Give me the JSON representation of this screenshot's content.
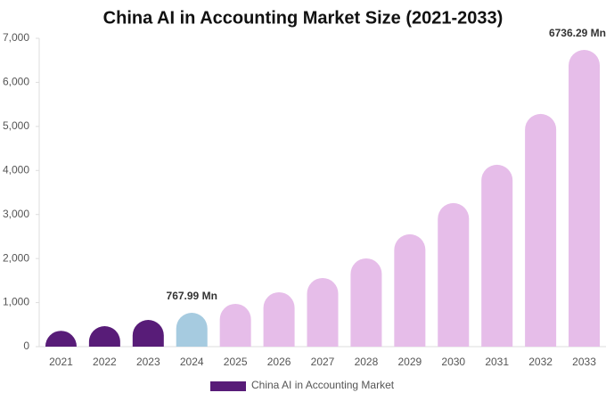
{
  "chart_data": {
    "type": "bar",
    "title": "China AI in Accounting Market Size (2021-2033)",
    "categories": [
      "2021",
      "2022",
      "2023",
      "2024",
      "2025",
      "2026",
      "2027",
      "2028",
      "2029",
      "2030",
      "2031",
      "2032",
      "2033"
    ],
    "series": [
      {
        "name": "China AI in Accounting Market",
        "color": "#581c78",
        "colors": [
          "#581c78",
          "#581c78",
          "#581c78",
          "#a6cbe0",
          "#e6bde9",
          "#e6bde9",
          "#e6bde9",
          "#e6bde9",
          "#e6bde9",
          "#e6bde9",
          "#e6bde9",
          "#e6bde9",
          "#e6bde9"
        ],
        "values": [
          360,
          465,
          607,
          767.99,
          972,
          1235,
          1559,
          2004,
          2551,
          3259,
          4130,
          5283,
          6736.29
        ],
        "value_labels": [
          null,
          null,
          null,
          "767.99 Mn",
          null,
          null,
          null,
          null,
          null,
          null,
          null,
          null,
          "6736.29 Mn"
        ]
      }
    ],
    "ylim": [
      0,
      7000
    ],
    "yticks": [
      0,
      {
        "value": 1000,
        "label": "1,000"
      },
      {
        "value": 2000,
        "label": "2,000"
      },
      {
        "value": 3000,
        "label": "3,000"
      },
      {
        "value": 4000,
        "label": "4,000"
      },
      {
        "value": 5000,
        "label": "5,000"
      },
      {
        "value": 6000,
        "label": "6,000"
      },
      {
        "value": 7000,
        "label": "7,000"
      }
    ],
    "grid": false
  }
}
